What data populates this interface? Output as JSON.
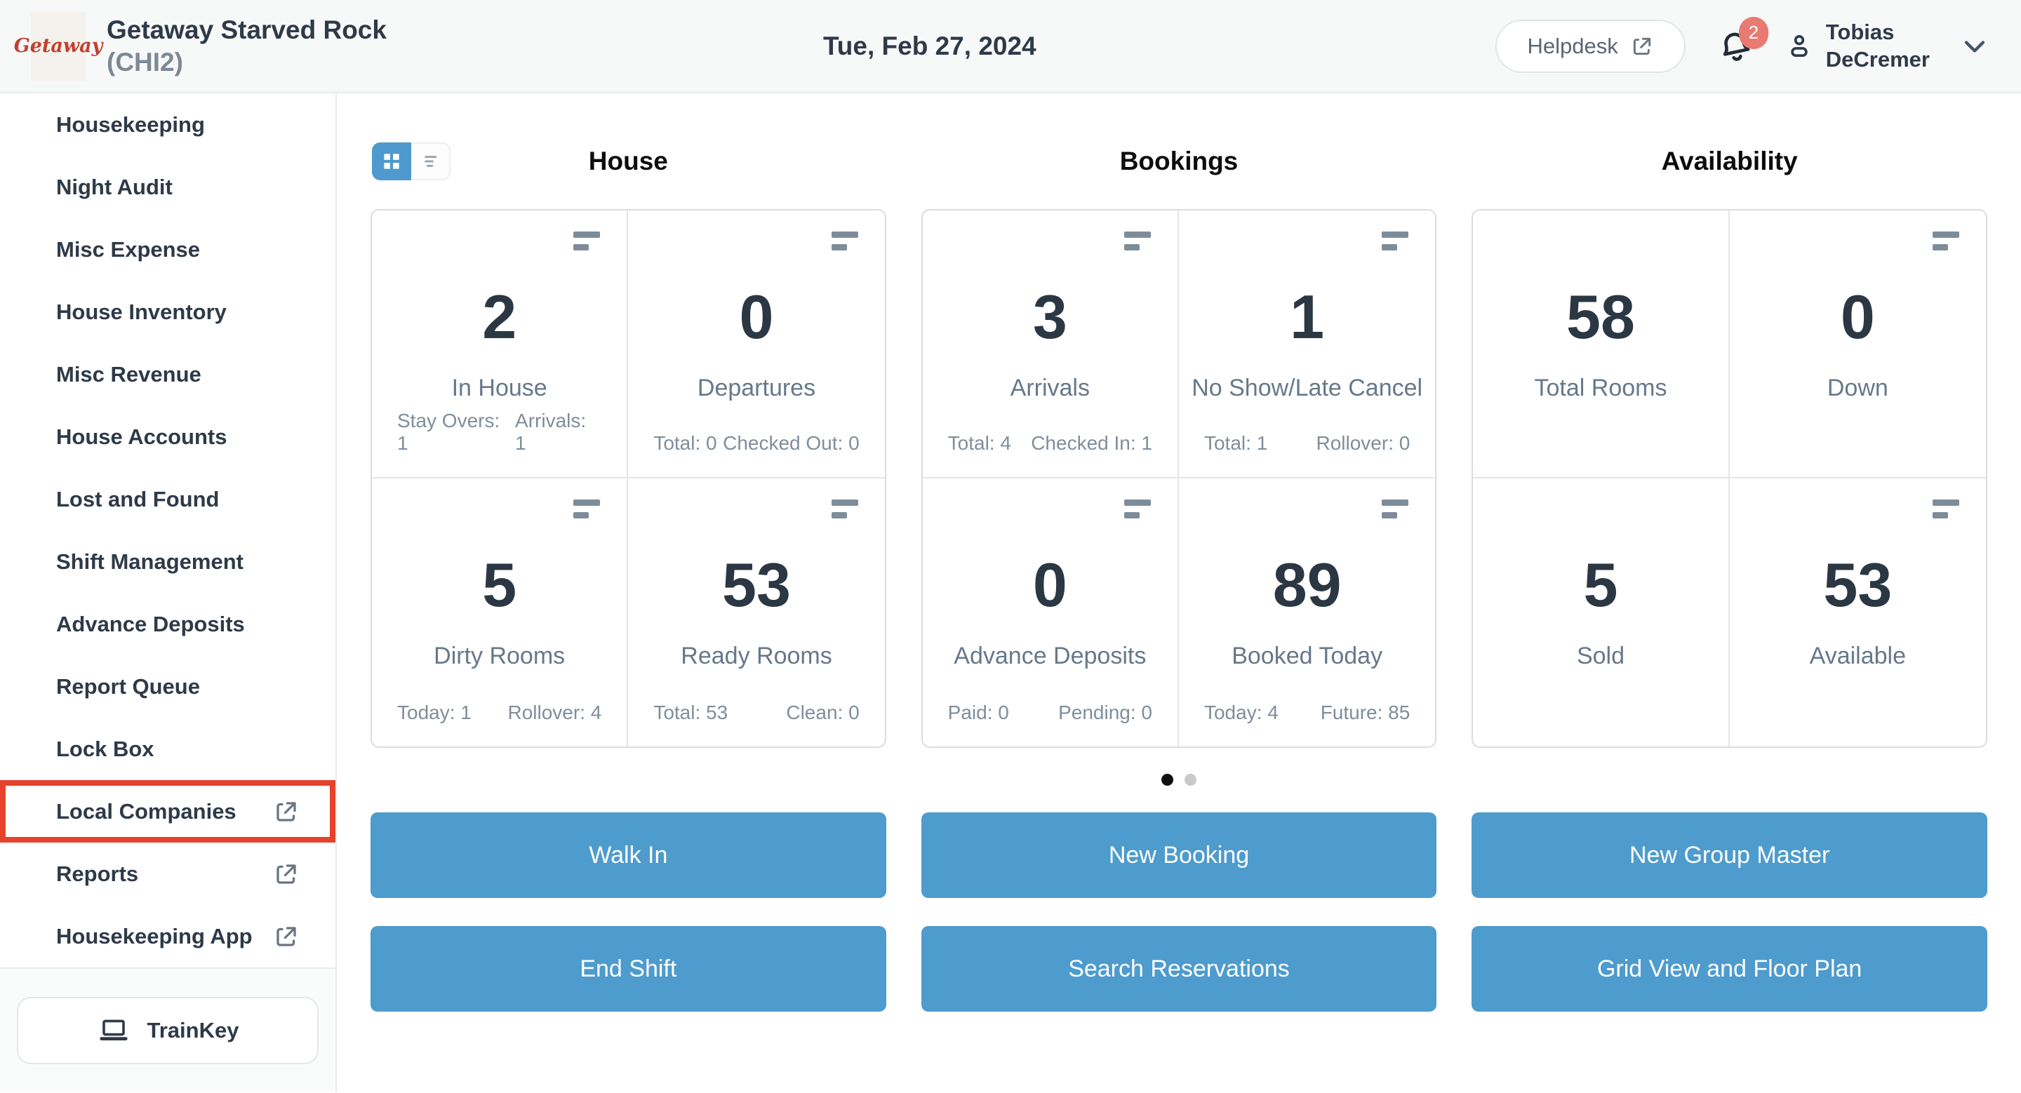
{
  "header": {
    "logo_text": "Getaway",
    "property_name": "Getaway Starved Rock",
    "property_code": "(CHI2)",
    "date": "Tue, Feb 27, 2024",
    "helpdesk_label": "Helpdesk",
    "notification_count": "2",
    "user_name_line1": "Tobias",
    "user_name_line2": "DeCremer"
  },
  "sidebar": {
    "items": [
      {
        "label": "Housekeeping",
        "external": false,
        "highlighted": false
      },
      {
        "label": "Night Audit",
        "external": false,
        "highlighted": false
      },
      {
        "label": "Misc Expense",
        "external": false,
        "highlighted": false
      },
      {
        "label": "House Inventory",
        "external": false,
        "highlighted": false
      },
      {
        "label": "Misc Revenue",
        "external": false,
        "highlighted": false
      },
      {
        "label": "House Accounts",
        "external": false,
        "highlighted": false
      },
      {
        "label": "Lost and Found",
        "external": false,
        "highlighted": false
      },
      {
        "label": "Shift Management",
        "external": false,
        "highlighted": false
      },
      {
        "label": "Advance Deposits",
        "external": false,
        "highlighted": false
      },
      {
        "label": "Report Queue",
        "external": false,
        "highlighted": false
      },
      {
        "label": "Lock Box",
        "external": false,
        "highlighted": false
      },
      {
        "label": "Local Companies",
        "external": true,
        "highlighted": true
      },
      {
        "label": "Reports",
        "external": true,
        "highlighted": false
      },
      {
        "label": "Housekeeping App",
        "external": true,
        "highlighted": false
      }
    ],
    "trainkey_label": "TrainKey"
  },
  "dashboard": {
    "view_toggle": {
      "active": "grid"
    },
    "sections": [
      {
        "title": "House",
        "cards": [
          {
            "value": "2",
            "label": "In House",
            "stat_left": "Stay Overs: 1",
            "stat_right": "Arrivals: 1",
            "menu_icon": true
          },
          {
            "value": "0",
            "label": "Departures",
            "stat_left": "Total: 0",
            "stat_right": "Checked Out: 0",
            "menu_icon": true
          },
          {
            "value": "5",
            "label": "Dirty Rooms",
            "stat_left": "Today: 1",
            "stat_right": "Rollover: 4",
            "menu_icon": true
          },
          {
            "value": "53",
            "label": "Ready Rooms",
            "stat_left": "Total: 53",
            "stat_right": "Clean: 0",
            "menu_icon": true
          }
        ]
      },
      {
        "title": "Bookings",
        "cards": [
          {
            "value": "3",
            "label": "Arrivals",
            "stat_left": "Total: 4",
            "stat_right": "Checked In: 1",
            "menu_icon": true
          },
          {
            "value": "1",
            "label": "No Show/Late Cancel",
            "stat_left": "Total: 1",
            "stat_right": "Rollover: 0",
            "menu_icon": true
          },
          {
            "value": "0",
            "label": "Advance Deposits",
            "stat_left": "Paid: 0",
            "stat_right": "Pending: 0",
            "menu_icon": true
          },
          {
            "value": "89",
            "label": "Booked Today",
            "stat_left": "Today: 4",
            "stat_right": "Future: 85",
            "menu_icon": true
          }
        ]
      },
      {
        "title": "Availability",
        "cards": [
          {
            "value": "58",
            "label": "Total Rooms",
            "menu_icon": false
          },
          {
            "value": "0",
            "label": "Down",
            "menu_icon": true
          },
          {
            "value": "5",
            "label": "Sold",
            "menu_icon": false
          },
          {
            "value": "53",
            "label": "Available",
            "menu_icon": true
          }
        ]
      }
    ],
    "carousel": {
      "dot_count": 2,
      "active_index": 0
    },
    "actions": [
      [
        "Walk In",
        "New Booking",
        "New Group Master"
      ],
      [
        "End Shift",
        "Search Reservations",
        "Grid View and Floor Plan"
      ]
    ]
  },
  "colors": {
    "accent_blue": "#4e9bce",
    "highlight_red": "#e5432c",
    "badge_red": "#e87a72",
    "text_dark": "#2e3a48",
    "text_gray": "#66788a"
  }
}
